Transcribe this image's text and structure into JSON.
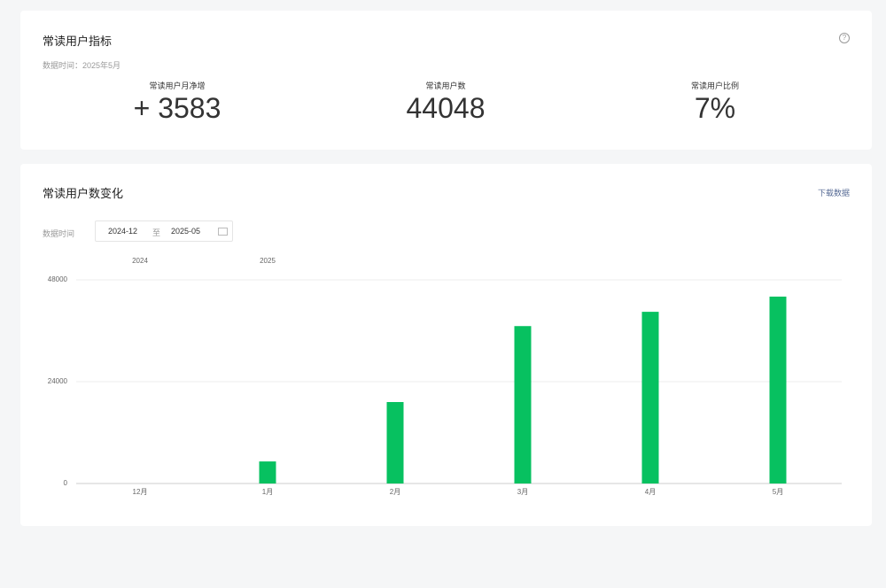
{
  "header": {
    "title": "常读用户指标",
    "data_time": "数据时间：2025年5月"
  },
  "metrics": [
    {
      "label": "常读用户月净增",
      "value": "+ 3583"
    },
    {
      "label": "常读用户数",
      "value": "44048"
    },
    {
      "label": "常读用户比例",
      "value": "7%"
    }
  ],
  "trend": {
    "title": "常读用户数变化",
    "download": "下载数据",
    "range_label": "数据时间",
    "range_start": "2024-12",
    "range_sep": "至",
    "range_end": "2025-05",
    "year_labels": [
      "2024",
      "2025"
    ]
  },
  "chart_data": {
    "type": "bar",
    "categories": [
      "12月",
      "1月",
      "2月",
      "3月",
      "4月",
      "5月"
    ],
    "values": [
      0,
      5200,
      19200,
      37100,
      40465,
      44048
    ],
    "color": "#07c160",
    "ylim": [
      0,
      48000
    ],
    "yticks": [
      0,
      24000,
      48000
    ],
    "grid": true
  }
}
